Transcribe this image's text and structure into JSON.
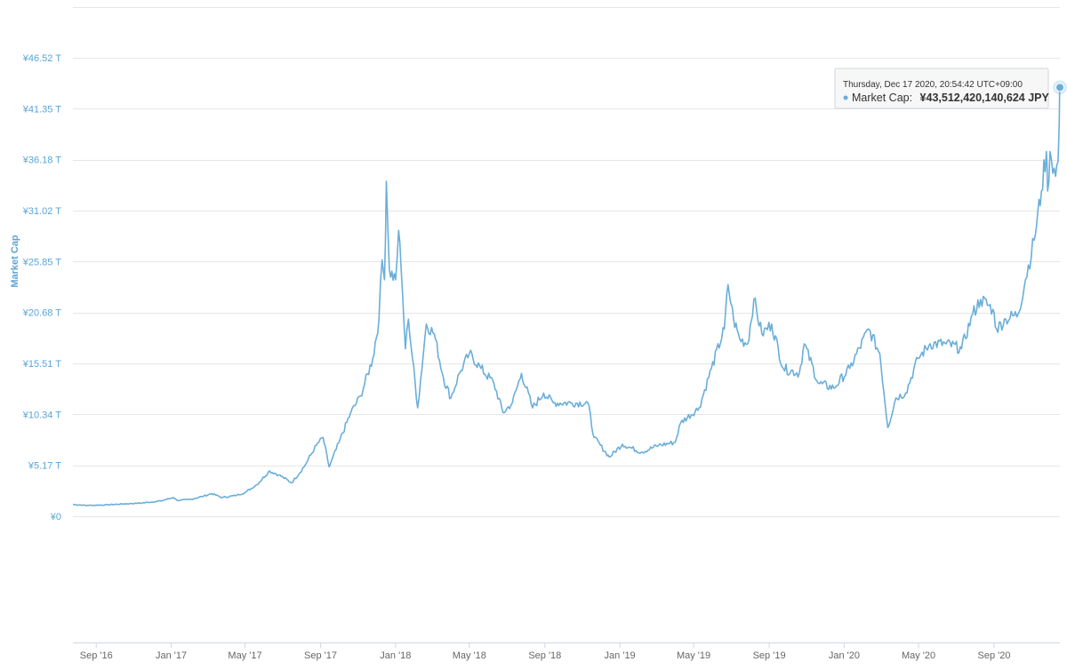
{
  "chart_data": {
    "type": "line",
    "ylabel": "Market Cap",
    "xlabel": "",
    "title": "",
    "ylim": [
      0,
      51.69
    ],
    "y_unit_note": "trillion JPY",
    "y_ticks": [
      {
        "value": 0,
        "label": "¥0"
      },
      {
        "value": 5.17,
        "label": "¥5.17 T"
      },
      {
        "value": 10.34,
        "label": "¥10.34 T"
      },
      {
        "value": 15.51,
        "label": "¥15.51 T"
      },
      {
        "value": 20.68,
        "label": "¥20.68 T"
      },
      {
        "value": 25.85,
        "label": "¥25.85 T"
      },
      {
        "value": 31.02,
        "label": "¥31.02 T"
      },
      {
        "value": 36.18,
        "label": "¥36.18 T"
      },
      {
        "value": 41.35,
        "label": "¥41.35 T"
      },
      {
        "value": 46.52,
        "label": "¥46.52 T"
      }
    ],
    "x_range": [
      "2016-07-25",
      "2020-12-17"
    ],
    "x_ticks": [
      {
        "date": "2016-09-01",
        "label": "Sep '16"
      },
      {
        "date": "2017-01-01",
        "label": "Jan '17"
      },
      {
        "date": "2017-05-01",
        "label": "May '17"
      },
      {
        "date": "2017-09-01",
        "label": "Sep '17"
      },
      {
        "date": "2018-01-01",
        "label": "Jan '18"
      },
      {
        "date": "2018-05-01",
        "label": "May '18"
      },
      {
        "date": "2018-09-01",
        "label": "Sep '18"
      },
      {
        "date": "2019-01-01",
        "label": "Jan '19"
      },
      {
        "date": "2019-05-01",
        "label": "May '19"
      },
      {
        "date": "2019-09-01",
        "label": "Sep '19"
      },
      {
        "date": "2020-01-01",
        "label": "Jan '20"
      },
      {
        "date": "2020-05-01",
        "label": "May '20"
      },
      {
        "date": "2020-09-01",
        "label": "Sep '20"
      }
    ],
    "grid": true,
    "series": [
      {
        "name": "Market Cap",
        "color": "#6aaed9",
        "points": [
          [
            "2016-07-25",
            1.2
          ],
          [
            "2016-08-15",
            1.1
          ],
          [
            "2016-09-15",
            1.15
          ],
          [
            "2016-10-15",
            1.25
          ],
          [
            "2016-11-15",
            1.35
          ],
          [
            "2016-12-15",
            1.55
          ],
          [
            "2017-01-04",
            1.9
          ],
          [
            "2017-01-12",
            1.6
          ],
          [
            "2017-02-01",
            1.7
          ],
          [
            "2017-02-20",
            2.0
          ],
          [
            "2017-03-08",
            2.3
          ],
          [
            "2017-03-25",
            1.9
          ],
          [
            "2017-04-15",
            2.1
          ],
          [
            "2017-05-01",
            2.4
          ],
          [
            "2017-05-20",
            3.2
          ],
          [
            "2017-06-10",
            4.6
          ],
          [
            "2017-06-25",
            4.2
          ],
          [
            "2017-07-16",
            3.4
          ],
          [
            "2017-08-05",
            5.0
          ],
          [
            "2017-08-25",
            7.2
          ],
          [
            "2017-09-05",
            8.0
          ],
          [
            "2017-09-15",
            5.0
          ],
          [
            "2017-10-01",
            7.5
          ],
          [
            "2017-10-20",
            10.5
          ],
          [
            "2017-11-05",
            12.2
          ],
          [
            "2017-11-25",
            16.0
          ],
          [
            "2017-12-05",
            20.0
          ],
          [
            "2017-12-10",
            26.0
          ],
          [
            "2017-12-14",
            24.0
          ],
          [
            "2017-12-17",
            34.0
          ],
          [
            "2017-12-22",
            25.0
          ],
          [
            "2018-01-01",
            24.0
          ],
          [
            "2018-01-06",
            29.0
          ],
          [
            "2018-01-12",
            23.0
          ],
          [
            "2018-01-17",
            17.0
          ],
          [
            "2018-01-22",
            20.0
          ],
          [
            "2018-02-06",
            11.0
          ],
          [
            "2018-02-20",
            19.5
          ],
          [
            "2018-03-05",
            18.5
          ],
          [
            "2018-03-20",
            14.0
          ],
          [
            "2018-04-01",
            12.0
          ],
          [
            "2018-04-15",
            14.5
          ],
          [
            "2018-05-01",
            16.5
          ],
          [
            "2018-05-20",
            15.0
          ],
          [
            "2018-06-10",
            13.5
          ],
          [
            "2018-06-25",
            10.5
          ],
          [
            "2018-07-10",
            11.5
          ],
          [
            "2018-07-25",
            14.5
          ],
          [
            "2018-08-12",
            11.0
          ],
          [
            "2018-08-30",
            12.5
          ],
          [
            "2018-09-15",
            11.5
          ],
          [
            "2018-10-15",
            11.5
          ],
          [
            "2018-11-10",
            11.5
          ],
          [
            "2018-11-20",
            8.0
          ],
          [
            "2018-12-15",
            6.0
          ],
          [
            "2019-01-05",
            7.3
          ],
          [
            "2019-02-05",
            6.5
          ],
          [
            "2019-03-05",
            7.2
          ],
          [
            "2019-04-01",
            7.5
          ],
          [
            "2019-04-10",
            9.5
          ],
          [
            "2019-05-10",
            11.0
          ],
          [
            "2019-05-30",
            15.0
          ],
          [
            "2019-06-20",
            19.0
          ],
          [
            "2019-06-26",
            23.5
          ],
          [
            "2019-07-05",
            20.0
          ],
          [
            "2019-07-15",
            18.0
          ],
          [
            "2019-07-28",
            17.5
          ],
          [
            "2019-08-07",
            22.0
          ],
          [
            "2019-08-20",
            18.5
          ],
          [
            "2019-09-05",
            19.5
          ],
          [
            "2019-09-24",
            15.0
          ],
          [
            "2019-10-20",
            14.5
          ],
          [
            "2019-10-28",
            17.5
          ],
          [
            "2019-11-20",
            13.5
          ],
          [
            "2019-12-15",
            13.0
          ],
          [
            "2020-01-10",
            15.0
          ],
          [
            "2020-02-10",
            19.0
          ],
          [
            "2020-02-28",
            16.5
          ],
          [
            "2020-03-12",
            9.0
          ],
          [
            "2020-03-25",
            12.0
          ],
          [
            "2020-04-10",
            12.5
          ],
          [
            "2020-04-30",
            16.0
          ],
          [
            "2020-05-20",
            17.5
          ],
          [
            "2020-06-15",
            17.5
          ],
          [
            "2020-07-10",
            17.0
          ],
          [
            "2020-07-28",
            20.5
          ],
          [
            "2020-08-10",
            22.0
          ],
          [
            "2020-08-30",
            21.0
          ],
          [
            "2020-09-05",
            19.0
          ],
          [
            "2020-09-20",
            20.0
          ],
          [
            "2020-10-10",
            20.5
          ],
          [
            "2020-10-22",
            24.0
          ],
          [
            "2020-11-05",
            28.0
          ],
          [
            "2020-11-17",
            33.0
          ],
          [
            "2020-11-25",
            37.0
          ],
          [
            "2020-11-27",
            33.0
          ],
          [
            "2020-12-01",
            37.0
          ],
          [
            "2020-12-10",
            34.5
          ],
          [
            "2020-12-14",
            36.0
          ],
          [
            "2020-12-16",
            40.0
          ],
          [
            "2020-12-17",
            43.51
          ]
        ]
      }
    ]
  },
  "tooltip": {
    "date": "Thursday, Dec 17 2020, 20:54:42 UTC+09:00",
    "label": "Market Cap:",
    "value": "¥43,512,420,140,624 JPY",
    "point_date": "2020-12-17",
    "point_value": 43.51
  }
}
